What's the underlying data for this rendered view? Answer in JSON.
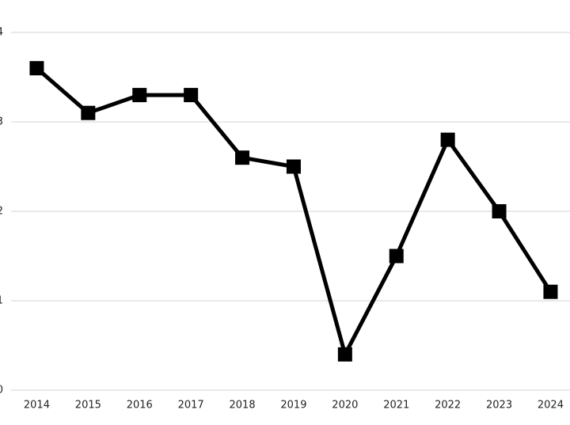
{
  "chart_data": {
    "type": "line",
    "categories": [
      "2014",
      "2015",
      "2016",
      "2017",
      "2018",
      "2019",
      "2020",
      "2021",
      "2022",
      "2023",
      "2024"
    ],
    "values": [
      3.6,
      3.1,
      3.3,
      3.3,
      2.6,
      2.5,
      0.4,
      1.5,
      2.8,
      2.0,
      1.1
    ],
    "color": "#000000",
    "ylim": [
      0,
      4
    ],
    "yticks": [
      0,
      1,
      2,
      3,
      4
    ],
    "grid": true
  }
}
